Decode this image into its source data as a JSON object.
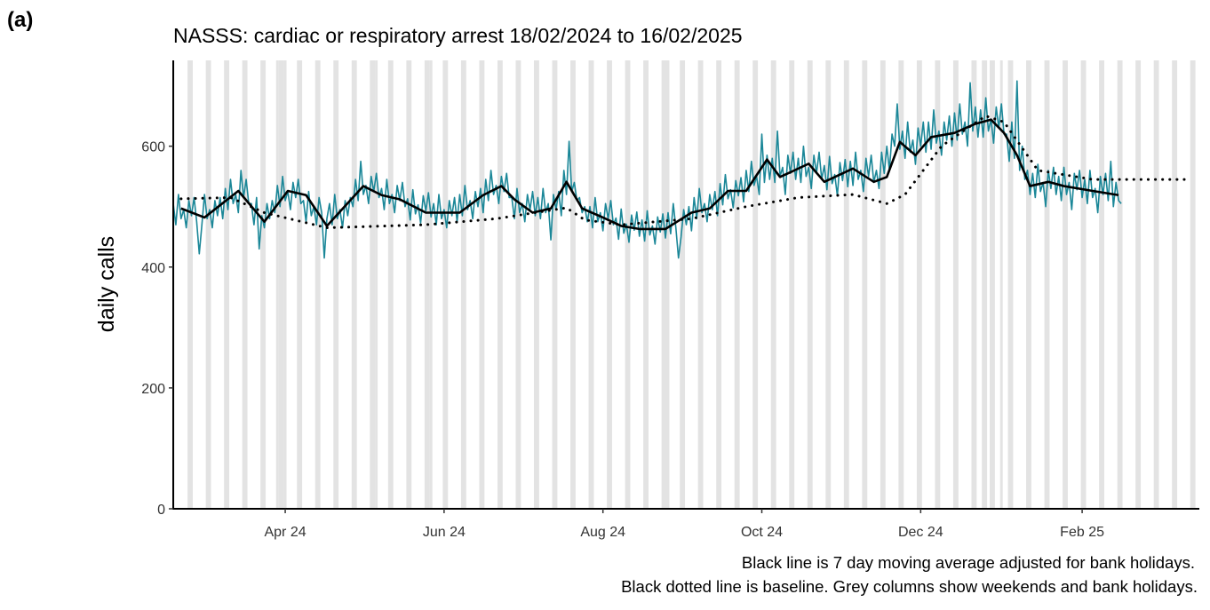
{
  "chart_data": {
    "type": "line",
    "panel_label": "(a)",
    "title": "NASSS: cardiac or respiratory arrest 18/02/2024 to 16/02/2025",
    "ylabel": "daily calls",
    "notes": [
      "Black line is 7 day moving average adjusted for bank holidays.",
      "Black dotted line is baseline. Grey columns show weekends and bank holidays."
    ],
    "xlim": [
      0,
      394
    ],
    "ylim": [
      0,
      742
    ],
    "xticks": [
      {
        "value": 43,
        "label": "Apr 24"
      },
      {
        "value": 104,
        "label": "Jun 24"
      },
      {
        "value": 165,
        "label": "Aug 24"
      },
      {
        "value": 226,
        "label": "Oct 24"
      },
      {
        "value": 287,
        "label": "Dec 24"
      },
      {
        "value": 349,
        "label": "Feb 25"
      }
    ],
    "yticks": [
      0,
      200,
      400,
      600
    ],
    "shade_color": "#e3e3e3",
    "shaded": [
      [
        -0.5,
        0.5
      ],
      [
        5.5,
        7.5
      ],
      [
        12.5,
        14.5
      ],
      [
        19.5,
        21.5
      ],
      [
        26.5,
        28.5
      ],
      [
        33.5,
        35.5
      ],
      [
        39.5,
        40.5
      ],
      [
        40.5,
        42.5
      ],
      [
        42.5,
        43.5
      ],
      [
        47.5,
        49.5
      ],
      [
        54.5,
        56.5
      ],
      [
        61.5,
        63.5
      ],
      [
        68.5,
        70.5
      ],
      [
        75.5,
        77.5
      ],
      [
        77.5,
        78.5
      ],
      [
        82.5,
        84.5
      ],
      [
        89.5,
        91.5
      ],
      [
        96.5,
        98.5
      ],
      [
        98.5,
        99.5
      ],
      [
        103.5,
        105.5
      ],
      [
        110.5,
        112.5
      ],
      [
        117.5,
        119.5
      ],
      [
        124.5,
        126.5
      ],
      [
        131.5,
        133.5
      ],
      [
        138.5,
        140.5
      ],
      [
        145.5,
        147.5
      ],
      [
        152.5,
        154.5
      ],
      [
        159.5,
        161.5
      ],
      [
        166.5,
        168.5
      ],
      [
        173.5,
        175.5
      ],
      [
        180.5,
        182.5
      ],
      [
        187.5,
        189.5
      ],
      [
        189.5,
        190.5
      ],
      [
        194.5,
        196.5
      ],
      [
        201.5,
        203.5
      ],
      [
        208.5,
        210.5
      ],
      [
        215.5,
        217.5
      ],
      [
        222.5,
        224.5
      ],
      [
        229.5,
        231.5
      ],
      [
        236.5,
        238.5
      ],
      [
        243.5,
        245.5
      ],
      [
        250.5,
        252.5
      ],
      [
        257.5,
        259.5
      ],
      [
        264.5,
        266.5
      ],
      [
        271.5,
        273.5
      ],
      [
        278.5,
        280.5
      ],
      [
        285.5,
        287.5
      ],
      [
        292.5,
        294.5
      ],
      [
        299.5,
        301.5
      ],
      [
        306.5,
        308.5
      ],
      [
        310.5,
        312.5
      ],
      [
        313.5,
        315.5
      ],
      [
        317.5,
        318.5
      ],
      [
        320.5,
        322.5
      ],
      [
        327.5,
        329.5
      ],
      [
        334.5,
        336.5
      ],
      [
        341.5,
        343.5
      ],
      [
        348.5,
        350.5
      ],
      [
        355.5,
        357.5
      ],
      [
        362.5,
        364.5
      ],
      [
        369.5,
        371.5
      ],
      [
        376.5,
        378.5
      ],
      [
        383.5,
        385.5
      ],
      [
        390.5,
        392.5
      ]
    ],
    "series": [
      {
        "color": "#1b8798",
        "width": 1.6,
        "style": "solid",
        "x": [
          0,
          1,
          2,
          3,
          4,
          5,
          6,
          7,
          8,
          9,
          10,
          11,
          12,
          13,
          14,
          15,
          16,
          17,
          18,
          19,
          20,
          21,
          22,
          23,
          24,
          25,
          26,
          27,
          28,
          29,
          30,
          31,
          32,
          33,
          34,
          35,
          36,
          37,
          38,
          39,
          40,
          41,
          42,
          43,
          44,
          45,
          46,
          47,
          48,
          49,
          50,
          51,
          52,
          53,
          54,
          55,
          56,
          57,
          58,
          59,
          60,
          61,
          62,
          63,
          64,
          65,
          66,
          67,
          68,
          69,
          70,
          71,
          72,
          73,
          74,
          75,
          76,
          77,
          78,
          79,
          80,
          81,
          82,
          83,
          84,
          85,
          86,
          87,
          88,
          89,
          90,
          91,
          92,
          93,
          94,
          95,
          96,
          97,
          98,
          99,
          100,
          101,
          102,
          103,
          104,
          105,
          106,
          107,
          108,
          109,
          110,
          111,
          112,
          113,
          114,
          115,
          116,
          117,
          118,
          119,
          120,
          121,
          122,
          123,
          124,
          125,
          126,
          127,
          128,
          129,
          130,
          131,
          132,
          133,
          134,
          135,
          136,
          137,
          138,
          139,
          140,
          141,
          142,
          143,
          144,
          145,
          146,
          147,
          148,
          149,
          150,
          151,
          152,
          153,
          154,
          155,
          156,
          157,
          158,
          159,
          160,
          161,
          162,
          163,
          164,
          165,
          166,
          167,
          168,
          169,
          170,
          171,
          172,
          173,
          174,
          175,
          176,
          177,
          178,
          179,
          180,
          181,
          182,
          183,
          184,
          185,
          186,
          187,
          188,
          189,
          190,
          191,
          192,
          193,
          194,
          195,
          196,
          197,
          198,
          199,
          200,
          201,
          202,
          203,
          204,
          205,
          206,
          207,
          208,
          209,
          210,
          211,
          212,
          213,
          214,
          215,
          216,
          217,
          218,
          219,
          220,
          221,
          222,
          223,
          224,
          225,
          226,
          227,
          228,
          229,
          230,
          231,
          232,
          233,
          234,
          235,
          236,
          237,
          238,
          239,
          240,
          241,
          242,
          243,
          244,
          245,
          246,
          247,
          248,
          249,
          250,
          251,
          252,
          253,
          254,
          255,
          256,
          257,
          258,
          259,
          260,
          261,
          262,
          263,
          264,
          265,
          266,
          267,
          268,
          269,
          270,
          271,
          272,
          273,
          274,
          275,
          276,
          277,
          278,
          279,
          280,
          281,
          282,
          283,
          284,
          285,
          286,
          287,
          288,
          289,
          290,
          291,
          292,
          293,
          294,
          295,
          296,
          297,
          298,
          299,
          300,
          301,
          302,
          303,
          304,
          305,
          306,
          307,
          308,
          309,
          310,
          311,
          312,
          313,
          314,
          315,
          316,
          317,
          318,
          319,
          320,
          321,
          322,
          323,
          324,
          325,
          326,
          327,
          328,
          329,
          330,
          331,
          332,
          333,
          334,
          335,
          336,
          337,
          338,
          339,
          340,
          341,
          342,
          343,
          344,
          345,
          346,
          347,
          348,
          349,
          350,
          351,
          352,
          353,
          354,
          355,
          356,
          357,
          358,
          359,
          360,
          361,
          362,
          363,
          364
        ],
        "values": [
          505,
          470,
          520,
          480,
          495,
          465,
          510,
          485,
          515,
          475,
          422,
          470,
          520,
          480,
          495,
          465,
          510,
          485,
          515,
          480,
          530,
          495,
          545,
          505,
          520,
          490,
          560,
          515,
          545,
          505,
          505,
          470,
          515,
          430,
          485,
          465,
          505,
          480,
          510,
          490,
          535,
          500,
          550,
          510,
          525,
          495,
          540,
          515,
          545,
          505,
          510,
          475,
          525,
          485,
          500,
          470,
          515,
          490,
          415,
          480,
          505,
          470,
          520,
          480,
          495,
          465,
          510,
          485,
          515,
          500,
          545,
          510,
          575,
          520,
          535,
          505,
          550,
          525,
          555,
          515,
          530,
          495,
          545,
          505,
          520,
          490,
          535,
          510,
          540,
          500,
          513,
          478,
          528,
          488,
          503,
          473,
          518,
          493,
          523,
          483,
          505,
          470,
          520,
          480,
          495,
          465,
          510,
          485,
          515,
          475,
          520,
          485,
          535,
          495,
          510,
          480,
          525,
          500,
          530,
          490,
          545,
          510,
          560,
          520,
          535,
          505,
          550,
          525,
          555,
          515,
          515,
          480,
          530,
          490,
          505,
          475,
          520,
          495,
          525,
          485,
          515,
          480,
          530,
          490,
          505,
          445,
          520,
          495,
          525,
          485,
          560,
          520,
          608,
          525,
          540,
          510,
          515,
          490,
          500,
          475,
          500,
          465,
          515,
          475,
          490,
          460,
          505,
          480,
          510,
          470,
          481,
          446,
          496,
          456,
          471,
          441,
          486,
          461,
          491,
          451,
          478,
          443,
          493,
          453,
          468,
          438,
          483,
          458,
          488,
          448,
          490,
          455,
          505,
          465,
          415,
          450,
          495,
          470,
          500,
          460,
          515,
          480,
          530,
          490,
          505,
          475,
          520,
          495,
          525,
          485,
          538,
          503,
          553,
          513,
          528,
          498,
          543,
          518,
          548,
          508,
          560,
          525,
          575,
          535,
          550,
          520,
          620,
          540,
          585,
          545,
          580,
          540,
          625,
          550,
          565,
          520,
          585,
          555,
          590,
          545,
          580,
          540,
          600,
          550,
          565,
          530,
          585,
          555,
          590,
          545,
          568,
          528,
          583,
          538,
          553,
          518,
          573,
          543,
          578,
          533,
          575,
          535,
          590,
          545,
          560,
          525,
          580,
          550,
          585,
          540,
          560,
          530,
          590,
          555,
          600,
          560,
          620,
          600,
          670,
          595,
          625,
          580,
          640,
          590,
          610,
          570,
          630,
          600,
          640,
          590,
          640,
          595,
          660,
          605,
          625,
          585,
          640,
          610,
          650,
          600,
          655,
          610,
          670,
          620,
          640,
          600,
          705,
          625,
          665,
          615,
          660,
          615,
          680,
          625,
          645,
          605,
          665,
          630,
          670,
          620,
          620,
          575,
          640,
          580,
          708,
          560,
          600,
          545,
          560,
          520,
          555,
          515,
          570,
          525,
          540,
          500,
          560,
          530,
          565,
          520,
          550,
          510,
          565,
          520,
          540,
          495,
          555,
          528,
          560,
          515,
          545,
          505,
          560,
          515,
          530,
          490,
          550,
          520,
          555,
          510,
          575,
          500,
          540,
          510,
          505
        ]
      },
      {
        "color": "#000000",
        "width": 2.6,
        "style": "solid",
        "x": [
          3,
          12,
          25,
          35,
          44,
          51,
          59,
          73,
          80,
          87,
          97,
          104,
          110,
          119,
          126,
          131,
          138,
          145,
          151,
          157,
          165,
          172,
          179,
          189,
          199,
          206,
          213,
          220,
          228,
          233,
          244,
          250,
          261,
          269,
          274,
          279,
          285,
          291,
          300,
          308,
          314,
          319,
          324,
          329,
          336,
          342,
          353,
          363
        ],
        "values": [
          497,
          482,
          526,
          475,
          526,
          519,
          468,
          534,
          519,
          512,
          490,
          490,
          490,
          519,
          534,
          512,
          490,
          497,
          541,
          497,
          482,
          468,
          463,
          463,
          490,
          497,
          526,
          526,
          578,
          549,
          571,
          541,
          563,
          541,
          549,
          607,
          585,
          615,
          622,
          637,
          644,
          622,
          585,
          534,
          541,
          534,
          526,
          519
        ]
      },
      {
        "color": "#000000",
        "width": 2.6,
        "style": "dotted",
        "x": [
          3,
          22,
          35,
          59,
          97,
          124,
          151,
          158,
          172,
          199,
          220,
          240,
          261,
          274,
          281,
          295,
          305,
          312,
          319,
          332,
          353,
          390
        ],
        "values": [
          513,
          515,
          490,
          465,
          470,
          480,
          498,
          478,
          470,
          480,
          500,
          515,
          520,
          505,
          520,
          600,
          630,
          650,
          640,
          560,
          545,
          545
        ]
      }
    ]
  }
}
